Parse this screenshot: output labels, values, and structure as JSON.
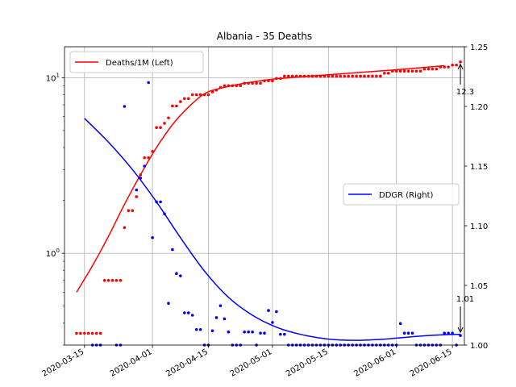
{
  "chart_data": {
    "type": "line",
    "title": "Albania - 35 Deaths",
    "x_axis": {
      "type": "date",
      "range": [
        "2020-03-10",
        "2020-06-18"
      ],
      "tick_labels": [
        "2020-03-15",
        "2020-04-01",
        "2020-04-15",
        "2020-05-01",
        "2020-05-15",
        "2020-06-01",
        "2020-06-15"
      ],
      "grid": true
    },
    "y_left": {
      "scale": "log",
      "range": [
        0.3,
        15
      ],
      "tick_labels": [
        "10^0",
        "10^1"
      ],
      "grid": true
    },
    "y_right": {
      "scale": "linear",
      "range": [
        1.0,
        1.25
      ],
      "tick_labels": [
        "1.00",
        "1.05",
        "1.10",
        "1.15",
        "1.20",
        "1.25"
      ]
    },
    "legends": [
      {
        "label": "Deaths/1M (Left)",
        "color": "#ff0000",
        "placement": "upper left"
      },
      {
        "label": "DDGR (Right)",
        "color": "#0000ff",
        "placement": "center right"
      }
    ],
    "series": [
      {
        "name": "Deaths/1M (Left)",
        "axis": "left",
        "style": "line",
        "color": "#ff0000",
        "points": [
          [
            "2020-03-13",
            0.6
          ],
          [
            "2020-03-17",
            0.85
          ],
          [
            "2020-03-21",
            1.25
          ],
          [
            "2020-03-25",
            1.9
          ],
          [
            "2020-03-29",
            2.8
          ],
          [
            "2020-04-02",
            4.0
          ],
          [
            "2020-04-06",
            5.4
          ],
          [
            "2020-04-10",
            6.8
          ],
          [
            "2020-04-14",
            8.1
          ],
          [
            "2020-04-18",
            8.7
          ],
          [
            "2020-04-24",
            9.3
          ],
          [
            "2020-05-01",
            9.8
          ],
          [
            "2020-05-10",
            10.2
          ],
          [
            "2020-05-20",
            10.6
          ],
          [
            "2020-06-01",
            11.1
          ],
          [
            "2020-06-13",
            11.7
          ]
        ]
      },
      {
        "name": "Deaths/1M (Left)",
        "axis": "left",
        "style": "dots",
        "color": "#ff0000",
        "points": [
          [
            "2020-03-13",
            0.35
          ],
          [
            "2020-03-14",
            0.35
          ],
          [
            "2020-03-15",
            0.35
          ],
          [
            "2020-03-16",
            0.35
          ],
          [
            "2020-03-17",
            0.35
          ],
          [
            "2020-03-18",
            0.35
          ],
          [
            "2020-03-19",
            0.35
          ],
          [
            "2020-03-20",
            0.7
          ],
          [
            "2020-03-21",
            0.7
          ],
          [
            "2020-03-22",
            0.7
          ],
          [
            "2020-03-23",
            0.7
          ],
          [
            "2020-03-24",
            0.7
          ],
          [
            "2020-03-25",
            1.4
          ],
          [
            "2020-03-26",
            1.75
          ],
          [
            "2020-03-27",
            1.75
          ],
          [
            "2020-03-28",
            2.1
          ],
          [
            "2020-03-29",
            2.8
          ],
          [
            "2020-03-30",
            3.5
          ],
          [
            "2020-03-31",
            3.5
          ],
          [
            "2020-04-01",
            3.8
          ],
          [
            "2020-04-02",
            5.2
          ],
          [
            "2020-04-03",
            5.2
          ],
          [
            "2020-04-04",
            5.5
          ],
          [
            "2020-04-05",
            5.9
          ],
          [
            "2020-04-06",
            6.9
          ],
          [
            "2020-04-07",
            6.9
          ],
          [
            "2020-04-08",
            7.3
          ],
          [
            "2020-04-09",
            7.6
          ],
          [
            "2020-04-10",
            7.6
          ],
          [
            "2020-04-11",
            8.0
          ],
          [
            "2020-04-12",
            8.0
          ],
          [
            "2020-04-13",
            8.0
          ],
          [
            "2020-04-14",
            8.0
          ],
          [
            "2020-04-15",
            8.0
          ],
          [
            "2020-04-16",
            8.3
          ],
          [
            "2020-04-17",
            8.5
          ],
          [
            "2020-04-18",
            8.8
          ],
          [
            "2020-04-19",
            9.0
          ],
          [
            "2020-04-20",
            9.0
          ],
          [
            "2020-04-21",
            9.0
          ],
          [
            "2020-04-22",
            9.0
          ],
          [
            "2020-04-23",
            9.0
          ],
          [
            "2020-04-24",
            9.3
          ],
          [
            "2020-04-25",
            9.3
          ],
          [
            "2020-04-26",
            9.3
          ],
          [
            "2020-04-27",
            9.3
          ],
          [
            "2020-04-28",
            9.3
          ],
          [
            "2020-04-29",
            9.6
          ],
          [
            "2020-04-30",
            9.6
          ],
          [
            "2020-05-01",
            9.6
          ],
          [
            "2020-05-02",
            9.9
          ],
          [
            "2020-05-03",
            9.9
          ],
          [
            "2020-05-04",
            10.2
          ],
          [
            "2020-05-05",
            10.2
          ],
          [
            "2020-05-06",
            10.2
          ],
          [
            "2020-05-07",
            10.2
          ],
          [
            "2020-05-08",
            10.2
          ],
          [
            "2020-05-09",
            10.2
          ],
          [
            "2020-05-10",
            10.2
          ],
          [
            "2020-05-11",
            10.2
          ],
          [
            "2020-05-12",
            10.2
          ],
          [
            "2020-05-13",
            10.2
          ],
          [
            "2020-05-14",
            10.2
          ],
          [
            "2020-05-15",
            10.2
          ],
          [
            "2020-05-16",
            10.2
          ],
          [
            "2020-05-17",
            10.2
          ],
          [
            "2020-05-18",
            10.2
          ],
          [
            "2020-05-19",
            10.2
          ],
          [
            "2020-05-20",
            10.2
          ],
          [
            "2020-05-21",
            10.2
          ],
          [
            "2020-05-22",
            10.2
          ],
          [
            "2020-05-23",
            10.2
          ],
          [
            "2020-05-24",
            10.2
          ],
          [
            "2020-05-25",
            10.2
          ],
          [
            "2020-05-26",
            10.2
          ],
          [
            "2020-05-27",
            10.2
          ],
          [
            "2020-05-28",
            10.2
          ],
          [
            "2020-05-29",
            10.6
          ],
          [
            "2020-05-30",
            10.6
          ],
          [
            "2020-05-31",
            10.9
          ],
          [
            "2020-06-01",
            10.9
          ],
          [
            "2020-06-02",
            10.9
          ],
          [
            "2020-06-03",
            10.9
          ],
          [
            "2020-06-04",
            10.9
          ],
          [
            "2020-06-05",
            10.9
          ],
          [
            "2020-06-06",
            10.9
          ],
          [
            "2020-06-07",
            10.9
          ],
          [
            "2020-06-08",
            11.2
          ],
          [
            "2020-06-09",
            11.2
          ],
          [
            "2020-06-10",
            11.2
          ],
          [
            "2020-06-11",
            11.2
          ],
          [
            "2020-06-12",
            11.5
          ],
          [
            "2020-06-13",
            11.5
          ],
          [
            "2020-06-14",
            11.5
          ],
          [
            "2020-06-15",
            11.8
          ],
          [
            "2020-06-16",
            11.8
          ],
          [
            "2020-06-17",
            12.3
          ]
        ]
      },
      {
        "name": "DDGR (Right)",
        "axis": "right",
        "style": "line",
        "color": "#0000ff",
        "points": [
          [
            "2020-03-15",
            1.19
          ],
          [
            "2020-03-21",
            1.17
          ],
          [
            "2020-03-27",
            1.147
          ],
          [
            "2020-04-02",
            1.12
          ],
          [
            "2020-04-08",
            1.09
          ],
          [
            "2020-04-14",
            1.062
          ],
          [
            "2020-04-20",
            1.04
          ],
          [
            "2020-04-26",
            1.025
          ],
          [
            "2020-05-02",
            1.015
          ],
          [
            "2020-05-08",
            1.009
          ],
          [
            "2020-05-15",
            1.005
          ],
          [
            "2020-05-22",
            1.004
          ],
          [
            "2020-05-29",
            1.005
          ],
          [
            "2020-06-05",
            1.007
          ],
          [
            "2020-06-12",
            1.0085
          ],
          [
            "2020-06-17",
            1.009
          ]
        ]
      },
      {
        "name": "DDGR (Right)",
        "axis": "right",
        "style": "dots",
        "color": "#0000ff",
        "points": [
          [
            "2020-03-25",
            1.2
          ],
          [
            "2020-03-28",
            1.13
          ],
          [
            "2020-03-29",
            1.14
          ],
          [
            "2020-03-30",
            1.15
          ],
          [
            "2020-03-31",
            1.22
          ],
          [
            "2020-04-01",
            1.09
          ],
          [
            "2020-04-02",
            1.12
          ],
          [
            "2020-04-03",
            1.12
          ],
          [
            "2020-04-04",
            1.11
          ],
          [
            "2020-04-05",
            1.035
          ],
          [
            "2020-04-06",
            1.08
          ],
          [
            "2020-04-07",
            1.06
          ],
          [
            "2020-04-08",
            1.058
          ],
          [
            "2020-04-09",
            1.027
          ],
          [
            "2020-04-10",
            1.027
          ],
          [
            "2020-04-11",
            1.025
          ],
          [
            "2020-04-12",
            1.013
          ],
          [
            "2020-04-13",
            1.013
          ],
          [
            "2020-04-16",
            1.012
          ],
          [
            "2020-04-17",
            1.023
          ],
          [
            "2020-04-18",
            1.033
          ],
          [
            "2020-04-19",
            1.022
          ],
          [
            "2020-04-20",
            1.011
          ],
          [
            "2020-04-24",
            1.011
          ],
          [
            "2020-04-25",
            1.011
          ],
          [
            "2020-04-26",
            1.011
          ],
          [
            "2020-04-28",
            1.01
          ],
          [
            "2020-04-29",
            1.01
          ],
          [
            "2020-04-30",
            1.029
          ],
          [
            "2020-05-01",
            1.019
          ],
          [
            "2020-05-02",
            1.028
          ],
          [
            "2020-05-03",
            1.009
          ],
          [
            "2020-05-04",
            1.009
          ],
          [
            "2020-06-02",
            1.018
          ],
          [
            "2020-06-03",
            1.01
          ],
          [
            "2020-06-04",
            1.01
          ],
          [
            "2020-06-05",
            1.01
          ],
          [
            "2020-06-13",
            1.01
          ],
          [
            "2020-06-14",
            1.01
          ],
          [
            "2020-06-15",
            1.01
          ],
          [
            "2020-06-17",
            1.008
          ]
        ]
      },
      {
        "name": "DDGR (Right)",
        "axis": "right",
        "style": "dots",
        "color": "#0000ff",
        "points": [
          [
            "2020-03-17",
            1.0
          ],
          [
            "2020-03-18",
            1.0
          ],
          [
            "2020-03-19",
            1.0
          ],
          [
            "2020-03-23",
            1.0
          ],
          [
            "2020-03-24",
            1.0
          ],
          [
            "2020-04-14",
            1.0
          ],
          [
            "2020-04-15",
            1.0
          ],
          [
            "2020-04-21",
            1.0
          ],
          [
            "2020-04-22",
            1.0
          ],
          [
            "2020-04-23",
            1.0
          ],
          [
            "2020-04-27",
            1.0
          ],
          [
            "2020-05-05",
            1.0
          ],
          [
            "2020-05-06",
            1.0
          ],
          [
            "2020-05-07",
            1.0
          ],
          [
            "2020-05-08",
            1.0
          ],
          [
            "2020-05-09",
            1.0
          ],
          [
            "2020-05-10",
            1.0
          ],
          [
            "2020-05-11",
            1.0
          ],
          [
            "2020-05-12",
            1.0
          ],
          [
            "2020-05-13",
            1.0
          ],
          [
            "2020-05-14",
            1.0
          ],
          [
            "2020-05-15",
            1.0
          ],
          [
            "2020-05-16",
            1.0
          ],
          [
            "2020-05-17",
            1.0
          ],
          [
            "2020-05-18",
            1.0
          ],
          [
            "2020-05-19",
            1.0
          ],
          [
            "2020-05-20",
            1.0
          ],
          [
            "2020-05-21",
            1.0
          ],
          [
            "2020-05-22",
            1.0
          ],
          [
            "2020-05-23",
            1.0
          ],
          [
            "2020-05-24",
            1.0
          ],
          [
            "2020-05-25",
            1.0
          ],
          [
            "2020-05-26",
            1.0
          ],
          [
            "2020-05-27",
            1.0
          ],
          [
            "2020-05-28",
            1.0
          ],
          [
            "2020-05-29",
            1.0
          ],
          [
            "2020-05-30",
            1.0
          ],
          [
            "2020-05-31",
            1.0
          ],
          [
            "2020-06-01",
            1.0
          ],
          [
            "2020-06-06",
            1.0
          ],
          [
            "2020-06-07",
            1.0
          ],
          [
            "2020-06-08",
            1.0
          ],
          [
            "2020-06-09",
            1.0
          ],
          [
            "2020-06-10",
            1.0
          ],
          [
            "2020-06-11",
            1.0
          ],
          [
            "2020-06-12",
            1.0
          ],
          [
            "2020-06-16",
            1.0
          ]
        ]
      }
    ],
    "annotations": [
      {
        "text": "12.3",
        "x": "2020-06-17",
        "axis": "left",
        "y": 12.3
      },
      {
        "text": "1.01",
        "x": "2020-06-17",
        "axis": "right",
        "y": 1.008
      }
    ]
  }
}
